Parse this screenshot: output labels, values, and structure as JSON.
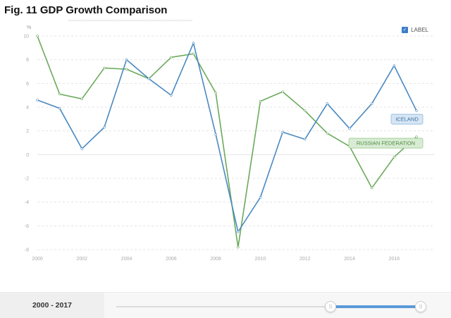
{
  "figure_title": "Fig. 11 GDP Growth Comparison",
  "y_unit": "%",
  "legend_toggle": {
    "label": "LABEL",
    "checked": true
  },
  "range_slider": {
    "label": "2000 - 2017",
    "handle_left_glyph": "|||",
    "handle_right_glyph": "|||"
  },
  "colors": {
    "iceland": "#4a89c2",
    "russia": "#6aaa5c",
    "grid": "#e4e4e4",
    "axis_text": "#aaaaaa"
  },
  "chart_data": {
    "type": "line",
    "title": "",
    "xlabel": "",
    "ylabel": "%",
    "x": [
      2000,
      2001,
      2002,
      2003,
      2004,
      2005,
      2006,
      2007,
      2008,
      2009,
      2010,
      2011,
      2012,
      2013,
      2014,
      2015,
      2016,
      2017
    ],
    "xlim": [
      2000,
      2017
    ],
    "ylim": [
      -8,
      10
    ],
    "x_ticks": [
      "2000",
      "2002",
      "2004",
      "2006",
      "2008",
      "2010",
      "2012",
      "2014",
      "2016"
    ],
    "y_ticks": [
      "10",
      "8",
      "6",
      "4",
      "2",
      "0",
      "-2",
      "-4",
      "-6",
      "-8"
    ],
    "grid": true,
    "series": [
      {
        "name": "ICELAND",
        "values": [
          4.6,
          3.9,
          0.5,
          2.3,
          8.0,
          6.4,
          5.0,
          9.4,
          1.7,
          -6.5,
          -3.6,
          1.9,
          1.3,
          4.3,
          2.2,
          4.3,
          7.5,
          3.7
        ]
      },
      {
        "name": "RUSSIAN FEDERATION",
        "values": [
          10.0,
          5.1,
          4.7,
          7.3,
          7.2,
          6.4,
          8.2,
          8.5,
          5.2,
          -7.8,
          4.5,
          5.3,
          3.7,
          1.8,
          0.7,
          -2.8,
          -0.2,
          1.5
        ]
      }
    ]
  }
}
